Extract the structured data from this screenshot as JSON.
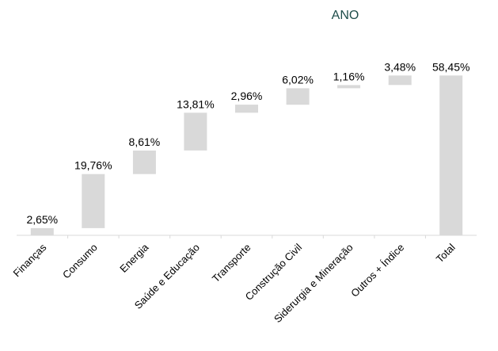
{
  "chart_data": {
    "type": "waterfall",
    "title": "ANO",
    "xlabel": "",
    "ylabel": "",
    "categories": [
      "Finanças",
      "Consumo",
      "Energia",
      "Saúde e Educação",
      "Transporte",
      "Construção Civil",
      "Siderurgia e Mineração",
      "Outros + Índice",
      "Total"
    ],
    "values": [
      2.65,
      19.76,
      8.61,
      13.81,
      2.96,
      6.02,
      1.16,
      3.48,
      58.45
    ],
    "value_labels": [
      "2,65%",
      "19,76%",
      "8,61%",
      "13,81%",
      "2,96%",
      "6,02%",
      "1,16%",
      "3,48%",
      "58,45%"
    ],
    "total_index": 8,
    "ylim": [
      0,
      60
    ],
    "grid": false,
    "colors": {
      "bar": "#d9d9d9",
      "axis": "#d9d9d9",
      "title": "#1e4d4a"
    }
  }
}
